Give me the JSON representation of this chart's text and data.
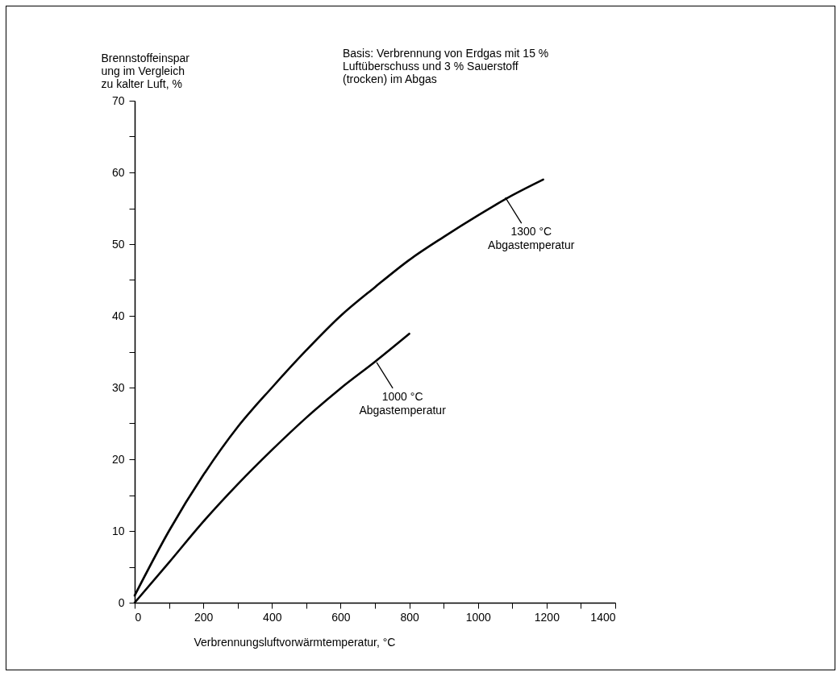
{
  "chart_data": {
    "type": "line",
    "xlabel": "Verbrennungsluftvorwärmtemperatur, °C",
    "ylabel": "Brennstoffeinspar\nung im Vergleich\nzu kalter Luft, %",
    "xlim": [
      0,
      1400
    ],
    "ylim": [
      0,
      70
    ],
    "xticks": [
      0,
      {
        "value": 100,
        "label": null
      },
      200,
      {
        "value": 300,
        "label": null
      },
      400,
      {
        "value": 500,
        "label": null
      },
      600,
      {
        "value": 700,
        "label": null
      },
      800,
      {
        "value": 900,
        "label": null
      },
      1000,
      {
        "value": 1100,
        "label": null
      },
      1200,
      {
        "value": 1300,
        "label": null
      },
      1400
    ],
    "yticks": [
      0,
      {
        "value": 5,
        "label": null
      },
      10,
      {
        "value": 15,
        "label": null
      },
      20,
      {
        "value": 25,
        "label": null
      },
      30,
      {
        "value": 35,
        "label": null
      },
      40,
      {
        "value": 45,
        "label": null
      },
      50,
      {
        "value": 55,
        "label": null
      },
      60,
      {
        "value": 65,
        "label": null
      },
      70
    ],
    "grid": false,
    "line_style": "solid",
    "marker": "none",
    "series": [
      {
        "color": "#000000",
        "x": [
          0,
          100,
          200,
          300,
          400,
          500,
          600,
          700,
          800,
          900,
          1000,
          1100,
          1190
        ],
        "values": [
          1,
          10,
          17.8,
          24.5,
          30,
          35.2,
          40,
          44,
          47.8,
          51,
          54,
          56.8,
          59
        ]
      },
      {
        "color": "#000000",
        "x": [
          0,
          100,
          200,
          300,
          400,
          500,
          600,
          700,
          800
        ],
        "values": [
          0,
          5.6,
          11.3,
          16.5,
          21.3,
          25.8,
          29.9,
          33.6,
          37.5
        ]
      }
    ],
    "annotations": [
      "Basis: Verbrennung von Erdgas mit 15 %\nLuftüberschuss und 3 % Sauerstoff\n(trocken) im Abgas",
      {
        "text": "1300 °C\nAbgastemperatur",
        "x": 1080,
        "y": 56.5
      },
      {
        "text": "1000 °C\nAbgastemperatur",
        "x": 705,
        "y": 33.5
      }
    ]
  }
}
